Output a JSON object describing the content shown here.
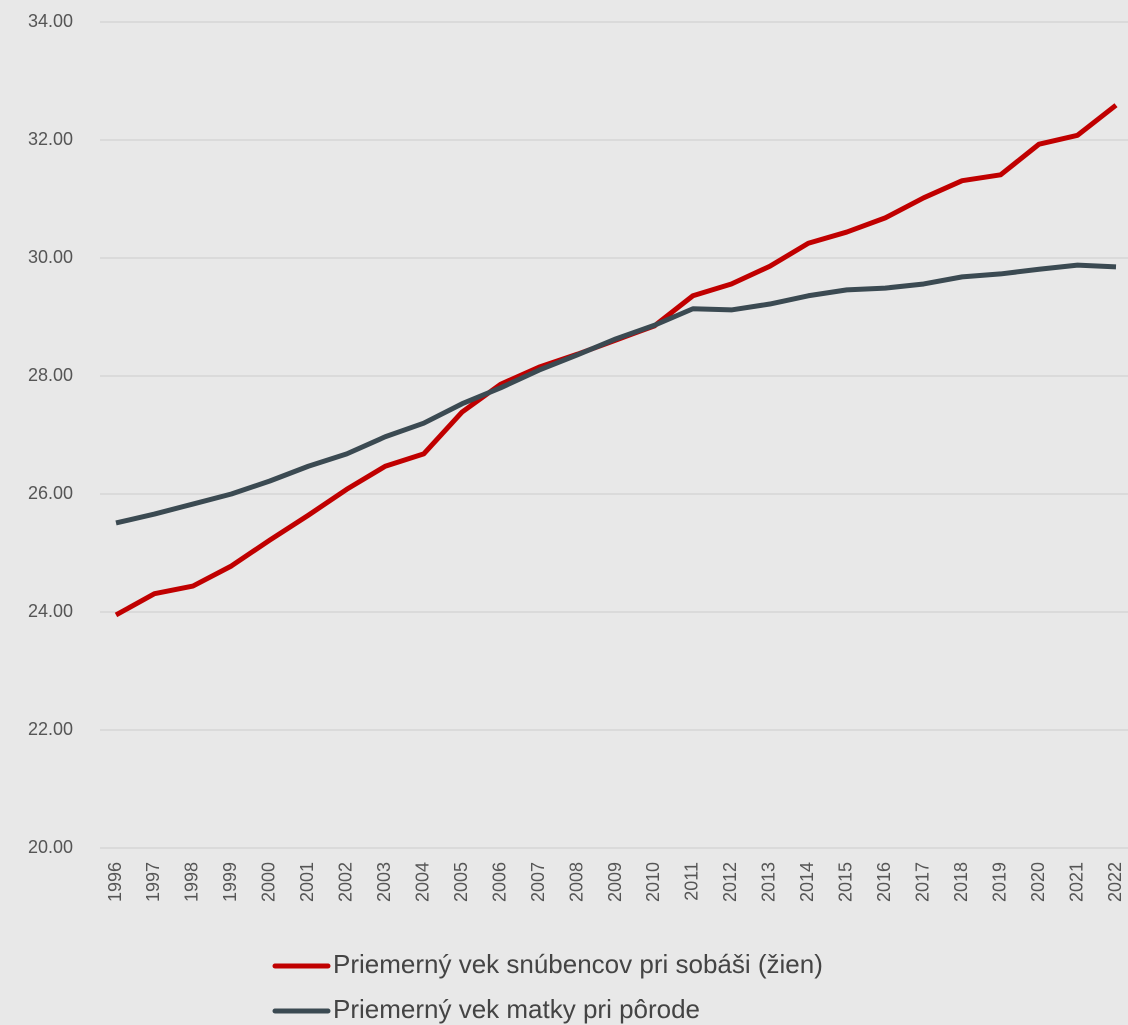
{
  "chart_data": {
    "type": "line",
    "categories": [
      "1996",
      "1997",
      "1998",
      "1999",
      "2000",
      "2001",
      "2002",
      "2003",
      "2004",
      "2005",
      "2006",
      "2007",
      "2008",
      "2009",
      "2010",
      "2011",
      "2012",
      "2013",
      "2014",
      "2015",
      "2016",
      "2017",
      "2018",
      "2019",
      "2020",
      "2021",
      "2022"
    ],
    "series": [
      {
        "name": "Priemerný vek snúbencov pri sobáši (žien)",
        "color": "#c00000",
        "values": [
          23.95,
          24.31,
          24.44,
          24.78,
          25.22,
          25.64,
          26.08,
          26.47,
          26.68,
          27.39,
          27.86,
          28.15,
          28.37,
          28.61,
          28.85,
          29.36,
          29.56,
          29.86,
          30.25,
          30.44,
          30.68,
          31.02,
          31.31,
          31.41,
          31.93,
          32.08,
          32.59
        ]
      },
      {
        "name": "Priemerný vek matky pri pôrode",
        "color": "#3b4a52",
        "values": [
          25.51,
          25.66,
          25.83,
          26.0,
          26.22,
          26.47,
          26.68,
          26.97,
          27.2,
          27.53,
          27.8,
          28.1,
          28.36,
          28.63,
          28.86,
          29.14,
          29.12,
          29.22,
          29.36,
          29.46,
          29.49,
          29.56,
          29.68,
          29.73,
          29.81,
          29.88,
          29.85
        ]
      }
    ],
    "ylim": [
      20,
      34
    ],
    "yticks": [
      {
        "value": 20,
        "label": "20.00"
      },
      {
        "value": 22,
        "label": "22.00"
      },
      {
        "value": 24,
        "label": "24.00"
      },
      {
        "value": 26,
        "label": "26.00"
      },
      {
        "value": 28,
        "label": "28.00"
      },
      {
        "value": 30,
        "label": "30.00"
      },
      {
        "value": 32,
        "label": "32.00"
      },
      {
        "value": 34,
        "label": "34.00"
      }
    ],
    "grid": true,
    "legend": "bottom"
  }
}
